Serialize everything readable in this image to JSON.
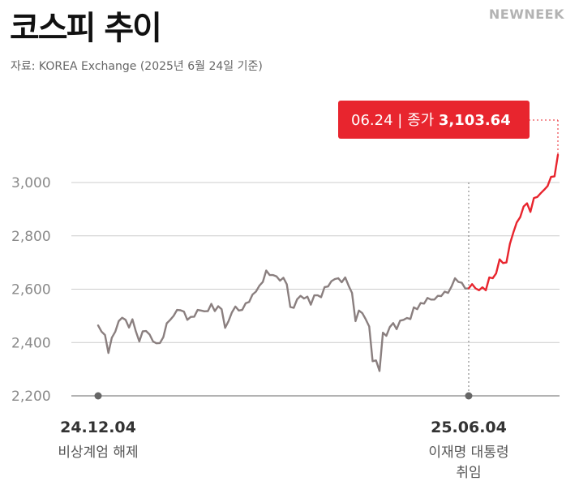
{
  "header": {
    "title": "코스피 추이",
    "logo": "NEWNEEK",
    "source": "자료: KOREA Exchange (2025년 6월 24일 기준)"
  },
  "colors": {
    "before": "#8a7f7f",
    "after": "#e8252e",
    "callout_bg": "#e8252e",
    "grid": "#cccccc",
    "axis": "#9a9a9a",
    "marker": "#666666"
  },
  "chart_data": {
    "type": "line",
    "title": "코스피 추이",
    "ylim": [
      2200,
      3000
    ],
    "y_ticks": [
      "2,200",
      "2,400",
      "2,600",
      "2,800",
      "3,000"
    ],
    "y_tick_values": [
      2200,
      2400,
      2600,
      2800,
      3000
    ],
    "series": [
      {
        "values": [
          2464,
          2441,
          2428,
          2361,
          2418,
          2441,
          2480,
          2493,
          2485,
          2456,
          2487,
          2442,
          2404,
          2442,
          2443,
          2430,
          2404,
          2397,
          2398,
          2420,
          2472,
          2485,
          2500,
          2522,
          2521,
          2516,
          2485,
          2496,
          2497,
          2522,
          2520,
          2517,
          2518,
          2545,
          2518,
          2536,
          2525,
          2455,
          2480,
          2513,
          2535,
          2520,
          2522,
          2547,
          2552,
          2580,
          2591,
          2613,
          2627,
          2670,
          2653,
          2653,
          2648,
          2632,
          2643,
          2618,
          2533,
          2530,
          2562,
          2575,
          2565,
          2572,
          2542,
          2577,
          2577,
          2570,
          2608,
          2610,
          2630,
          2638,
          2641,
          2626,
          2644,
          2613,
          2586,
          2480,
          2520,
          2510,
          2487,
          2460,
          2330,
          2333,
          2293,
          2437,
          2425,
          2458,
          2473,
          2450,
          2482,
          2485,
          2492,
          2488,
          2532,
          2525,
          2548,
          2546,
          2567,
          2561,
          2561,
          2575,
          2574,
          2591,
          2586,
          2610,
          2641,
          2627,
          2624,
          2602,
          2603,
          2619,
          2603,
          2596,
          2607,
          2596,
          2644,
          2641,
          2659,
          2712,
          2698,
          2700,
          2770,
          2812,
          2850,
          2870,
          2910,
          2922,
          2890,
          2942,
          2946,
          2960,
          2973,
          2987,
          3021,
          3023,
          3103.64
        ]
      }
    ],
    "split_index": 108,
    "events": [
      {
        "date": "24.12.04",
        "label": "비상계엄 해제",
        "index": 0
      },
      {
        "date": "25.06.04",
        "label_lines": [
          "이재명 대통령",
          "취임"
        ],
        "index": 108
      }
    ],
    "callout": {
      "date": "06.24",
      "sep": "|",
      "label": "종가",
      "value": "3,103.64"
    }
  }
}
